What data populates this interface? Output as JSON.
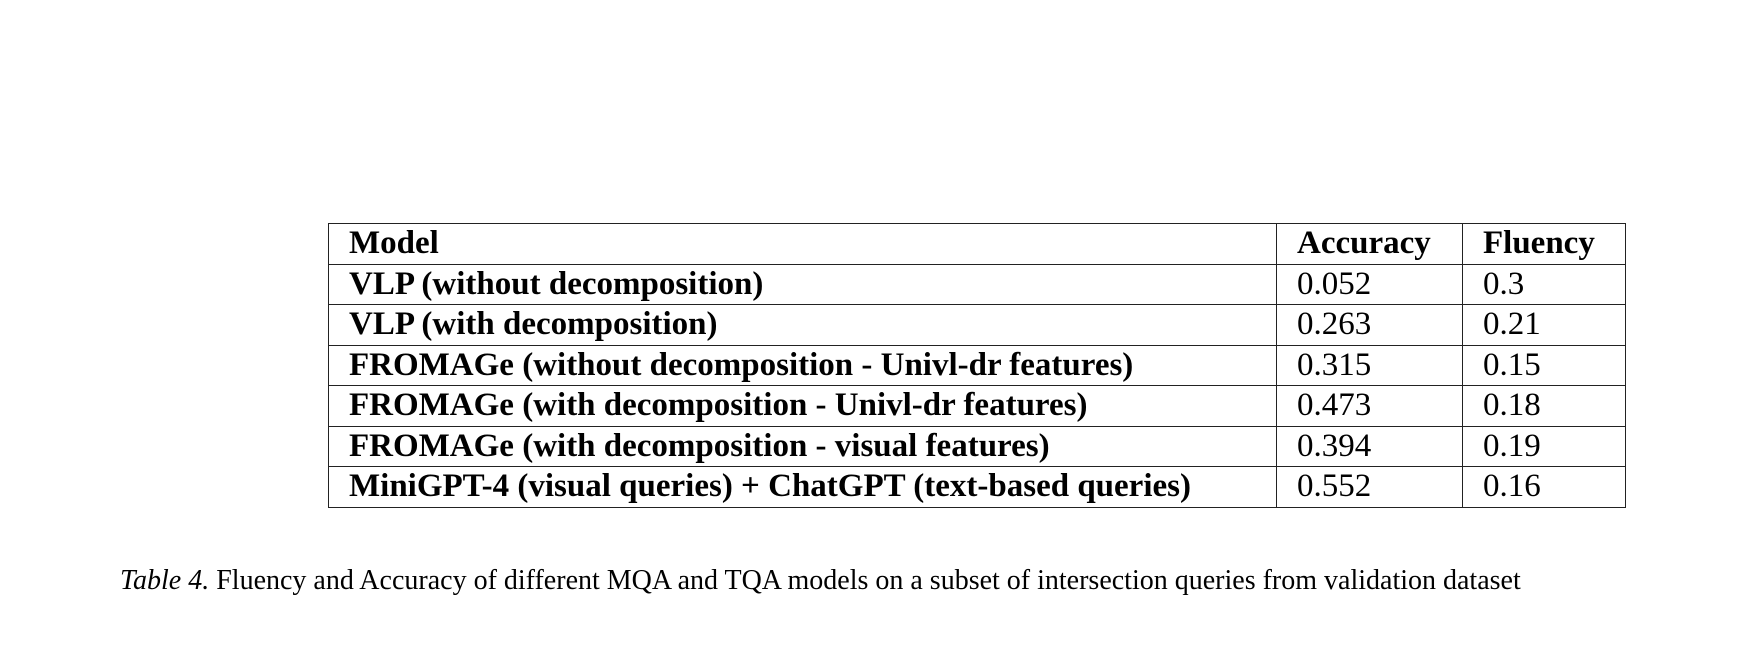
{
  "table": {
    "headers": [
      "Model",
      "Accuracy",
      "Fluency"
    ],
    "rows": [
      {
        "model": "VLP (without decomposition)",
        "accuracy": "0.052",
        "fluency": "0.3"
      },
      {
        "model": "VLP (with decomposition)",
        "accuracy": "0.263",
        "fluency": "0.21"
      },
      {
        "model": "FROMAGe (without decomposition - Univl-dr features)",
        "accuracy": "0.315",
        "fluency": "0.15"
      },
      {
        "model": "FROMAGe (with decomposition - Univl-dr features)",
        "accuracy": "0.473",
        "fluency": "0.18"
      },
      {
        "model": "FROMAGe (with decomposition - visual features)",
        "accuracy": "0.394",
        "fluency": "0.19"
      },
      {
        "model": "MiniGPT-4 (visual queries) + ChatGPT (text-based queries)",
        "accuracy": "0.552",
        "fluency": "0.16"
      }
    ]
  },
  "caption": {
    "label": "Table 4.",
    "text": "Fluency and Accuracy of different MQA and TQA models on a subset of intersection queries from validation dataset"
  }
}
